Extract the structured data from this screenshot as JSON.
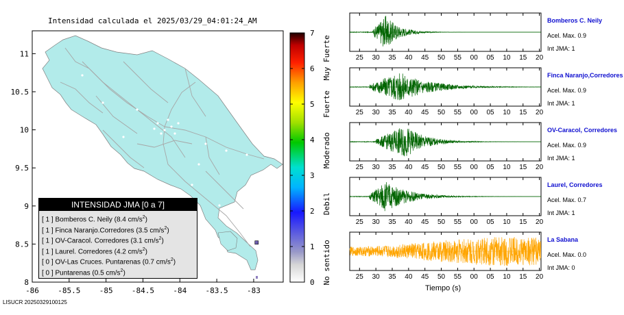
{
  "map": {
    "title": "Intensidad calculada el 2025/03/29_04:01:24_AM",
    "x_ticks": [
      "-86",
      "-85.5",
      "-85",
      "-84.5",
      "-84",
      "-83.5",
      "-83"
    ],
    "y_ticks": [
      "11",
      "10.5",
      "10",
      "9.5",
      "9",
      "8.5",
      "8"
    ],
    "lon_range": [
      -86,
      -82.6
    ],
    "lat_range": [
      8,
      11.3
    ],
    "land_color": "#b2ebea",
    "road_color": "#a6a6a6",
    "stations": [
      {
        "lon": -82.96,
        "lat": 8.52
      }
    ]
  },
  "legend": {
    "title": "INTENSIDAD JMA [0 a 7]",
    "rows": [
      {
        "jma": "[ 1 ]",
        "name": "Bomberos C. Neily",
        "acc": "(8.4 cm/s",
        "sup": "2",
        "close": ")"
      },
      {
        "jma": "[ 1 ]",
        "name": "Finca Naranjo.Corredores",
        "acc": "(3.5 cm/s",
        "sup": "2",
        "close": ")"
      },
      {
        "jma": "[ 1 ]",
        "name": "OV-Caracol. Corredores",
        "acc": "(3.1 cm/s",
        "sup": "2",
        "close": ")"
      },
      {
        "jma": "[ 1 ]",
        "name": "Laurel. Corredores",
        "acc": "(4.2 cm/s",
        "sup": "2",
        "close": ")"
      },
      {
        "jma": "[ 0 ]",
        "name": "OV-Las Cruces. Puntarenas",
        "acc": "(0.7 cm/s",
        "sup": "2",
        "close": ")"
      },
      {
        "jma": "[ 0 ]",
        "name": "Puntarenas",
        "acc": "(0.5 cm/s",
        "sup": "2",
        "close": ")"
      }
    ]
  },
  "colorbar": {
    "ticks": [
      "0",
      "1",
      "2",
      "3",
      "4",
      "5",
      "6",
      "7"
    ],
    "labels": [
      "No sentido",
      "Debil",
      "Moderado",
      "Fuerte",
      "Muy Fuerte"
    ],
    "range": [
      0,
      7
    ]
  },
  "footer": "LISUCR 20250329100125",
  "chart_data": {
    "type": "line",
    "xlabel": "Tiempo (s)",
    "x_tick_labels": [
      "25",
      "30",
      "35",
      "40",
      "45",
      "50",
      "55",
      "00",
      "05",
      "10",
      "15",
      "20"
    ],
    "series": [
      {
        "name": "Bomberos C. Neily",
        "acel_label": "Acel. Max. 0.9",
        "int_label": "Int JMA: 1",
        "color": "#006400",
        "onset": 29,
        "peak": 33,
        "decay": 4,
        "amp": 1.0
      },
      {
        "name": "Finca Naranjo,Corredores",
        "acel_label": "Acel. Max. 0.9",
        "int_label": "Int JMA: 1",
        "color": "#006400",
        "onset": 28,
        "peak": 37,
        "decay": 9,
        "amp": 0.9
      },
      {
        "name": "OV-Caracol, Corredores",
        "acel_label": "Acel. Max. 0.9",
        "int_label": "Int JMA: 1",
        "color": "#006400",
        "onset": 30,
        "peak": 39,
        "decay": 6,
        "amp": 0.95
      },
      {
        "name": "Laurel, Corredores",
        "acel_label": "Acel. Max. 0.7",
        "int_label": "Int JMA: 1",
        "color": "#006400",
        "onset": 28,
        "peak": 33,
        "decay": 7,
        "amp": 0.9
      },
      {
        "name": "La Sabana",
        "acel_label": "Acel. Max. 0.0",
        "int_label": "Int JMA: 0",
        "color": "#ffa500",
        "onset": 22,
        "peak": 70,
        "decay": 30,
        "amp": 0.85
      }
    ]
  }
}
